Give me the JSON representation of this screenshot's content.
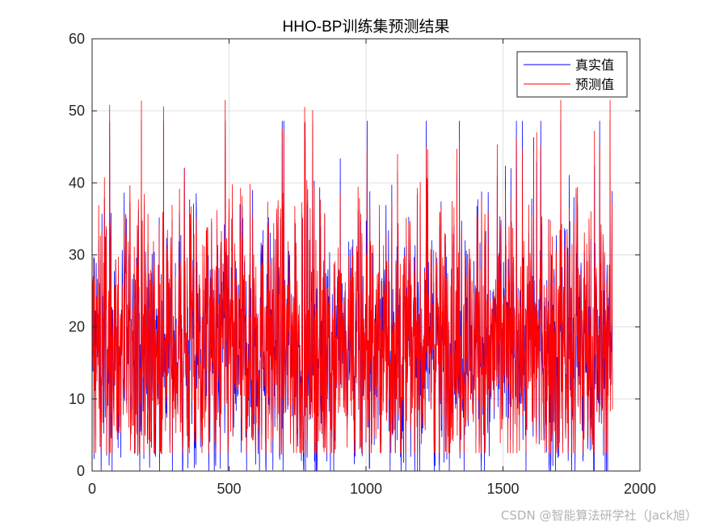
{
  "chart_data": {
    "type": "line",
    "title": "HHO-BP训练集预测结果",
    "xlabel": "",
    "ylabel": "",
    "xlim": [
      0,
      2000
    ],
    "ylim": [
      0,
      60
    ],
    "xticks": [
      0,
      500,
      1000,
      1500,
      2000
    ],
    "yticks": [
      0,
      10,
      20,
      30,
      40,
      50,
      60
    ],
    "grid": true,
    "legend_position": "top-right",
    "n_points": 1900,
    "series": [
      {
        "name": "真实值",
        "color": "#0000ff",
        "stats": {
          "min": 0,
          "max": 48.6,
          "mean": 17
        }
      },
      {
        "name": "预测值",
        "color": "#ff0000",
        "stats": {
          "min": 2.5,
          "max": 51.5,
          "mean": 17
        }
      }
    ]
  },
  "watermark": "CSDN @智能算法研学社（Jack旭）"
}
